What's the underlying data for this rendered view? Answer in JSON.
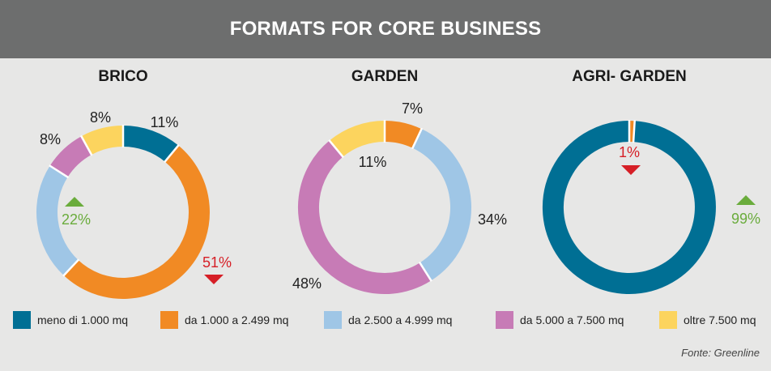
{
  "header": {
    "title": "FORMATS FOR CORE BUSINESS"
  },
  "legend": [
    {
      "label": "meno di 1.000 mq",
      "color": "#006f94"
    },
    {
      "label": "da 1.000 a 2.499 mq",
      "color": "#f18a24"
    },
    {
      "label": "da 2.500 a 4.999 mq",
      "color": "#9fc6e6"
    },
    {
      "label": "da 5.000 a 7.500 mq",
      "color": "#c77bb6"
    },
    {
      "label": "oltre 7.500 mq",
      "color": "#fcd45e"
    }
  ],
  "source": "Fonte: Greenline",
  "chart_data": [
    {
      "type": "pie",
      "title": "BRICO",
      "categories": [
        "meno di 1.000 mq",
        "da 1.000 a 2.499 mq",
        "da 2.500 a 4.999 mq",
        "da 5.000 a 7.500 mq",
        "oltre 7.500 mq"
      ],
      "values": [
        11,
        51,
        22,
        8,
        8
      ],
      "labels": [
        "11%",
        "51%",
        "22%",
        "8%",
        "8%"
      ],
      "trends": [
        null,
        "down",
        "up",
        null,
        null
      ]
    },
    {
      "type": "pie",
      "title": "GARDEN",
      "categories": [
        "da 1.000 a 2.499 mq",
        "da 2.500 a 4.999 mq",
        "da 5.000 a 7.500 mq",
        "oltre 7.500 mq"
      ],
      "values": [
        7,
        34,
        48,
        11
      ],
      "labels": [
        "7%",
        "34%",
        "48%",
        "11%"
      ],
      "trends": [
        null,
        null,
        null,
        null
      ]
    },
    {
      "type": "pie",
      "title": "AGRI- GARDEN",
      "categories": [
        "da 1.000 a 2.499 mq",
        "meno di 1.000 mq"
      ],
      "values": [
        1,
        99
      ],
      "labels": [
        "1%",
        "99%"
      ],
      "trends": [
        "down",
        "up"
      ]
    }
  ]
}
